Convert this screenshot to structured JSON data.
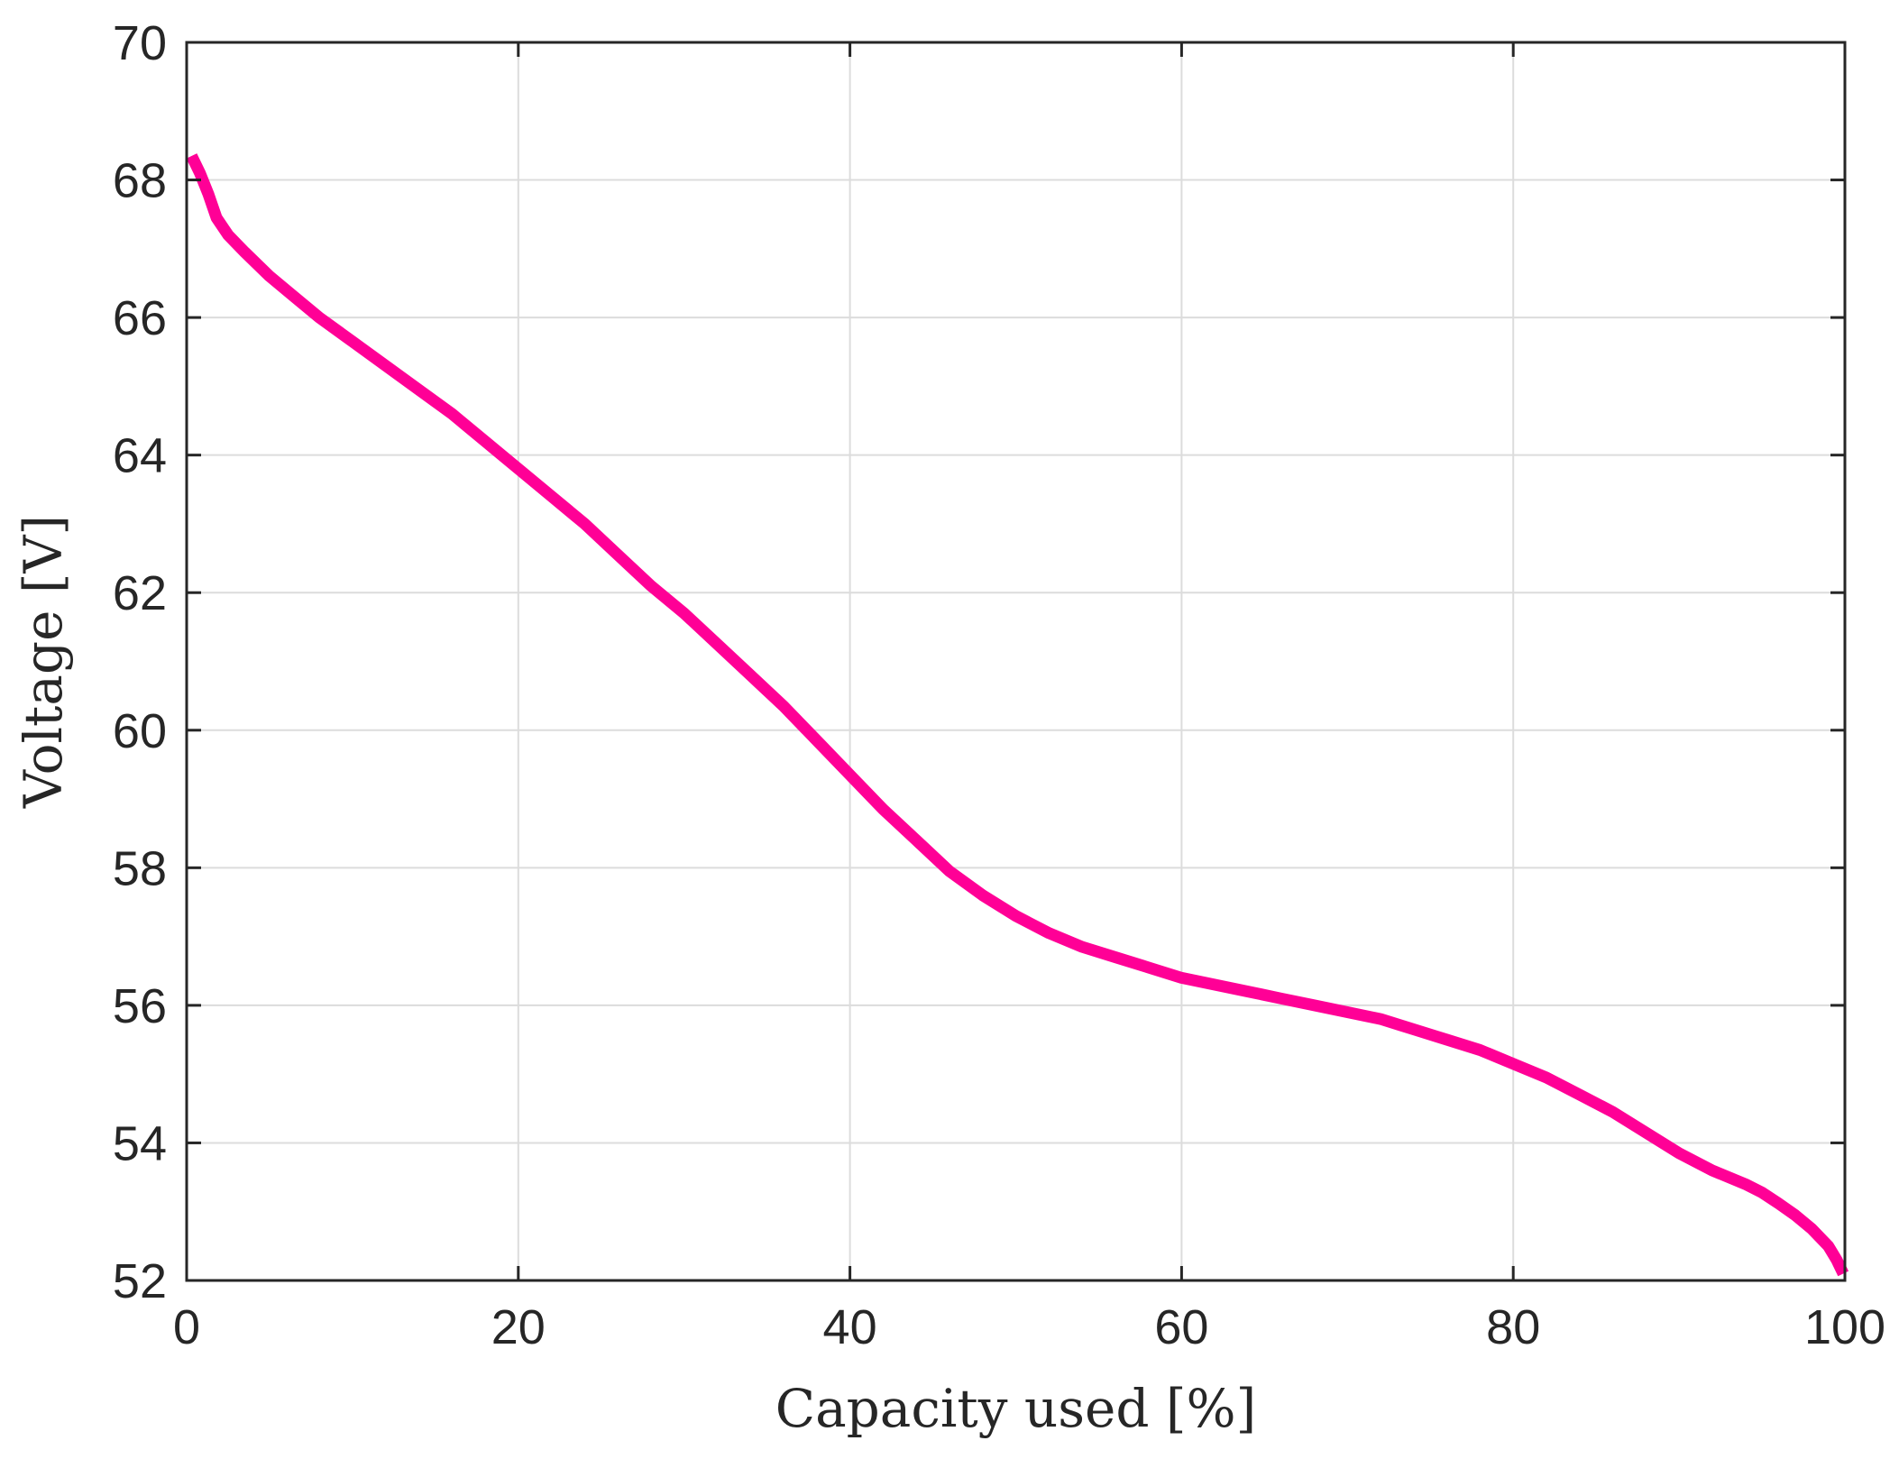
{
  "chart_data": {
    "type": "line",
    "xlabel": "Capacity used [%]",
    "ylabel": "Voltage [V]",
    "xlim": [
      0,
      100
    ],
    "ylim": [
      52,
      70
    ],
    "xticks": [
      0,
      20,
      40,
      60,
      80,
      100
    ],
    "yticks": [
      52,
      54,
      56,
      58,
      60,
      62,
      64,
      66,
      68,
      70
    ],
    "grid": true,
    "series": [
      {
        "color": "#ff0096",
        "x": [
          0.3,
          0.8,
          1.3,
          1.8,
          2.5,
          3.5,
          5,
          6.5,
          8,
          10,
          12,
          14,
          16,
          18,
          20,
          22,
          24,
          26,
          28,
          30,
          32,
          34,
          36,
          38,
          40,
          42,
          44,
          46,
          48,
          50,
          52,
          54,
          56,
          58,
          60,
          62,
          64,
          66,
          68,
          70,
          72,
          74,
          76,
          78,
          80,
          82,
          84,
          86,
          88,
          90,
          92,
          94,
          95,
          96,
          97,
          98,
          99,
          99.5,
          99.9
        ],
        "y": [
          68.35,
          68.1,
          67.8,
          67.45,
          67.2,
          66.95,
          66.6,
          66.3,
          66.0,
          65.65,
          65.3,
          64.95,
          64.6,
          64.2,
          63.8,
          63.4,
          63.0,
          62.55,
          62.1,
          61.7,
          61.25,
          60.8,
          60.35,
          59.85,
          59.35,
          58.85,
          58.4,
          57.95,
          57.6,
          57.3,
          57.05,
          56.85,
          56.7,
          56.55,
          56.4,
          56.3,
          56.2,
          56.1,
          56.0,
          55.9,
          55.8,
          55.65,
          55.5,
          55.35,
          55.15,
          54.95,
          54.7,
          54.45,
          54.15,
          53.85,
          53.6,
          53.4,
          53.28,
          53.12,
          52.95,
          52.75,
          52.5,
          52.3,
          52.1
        ]
      }
    ]
  }
}
